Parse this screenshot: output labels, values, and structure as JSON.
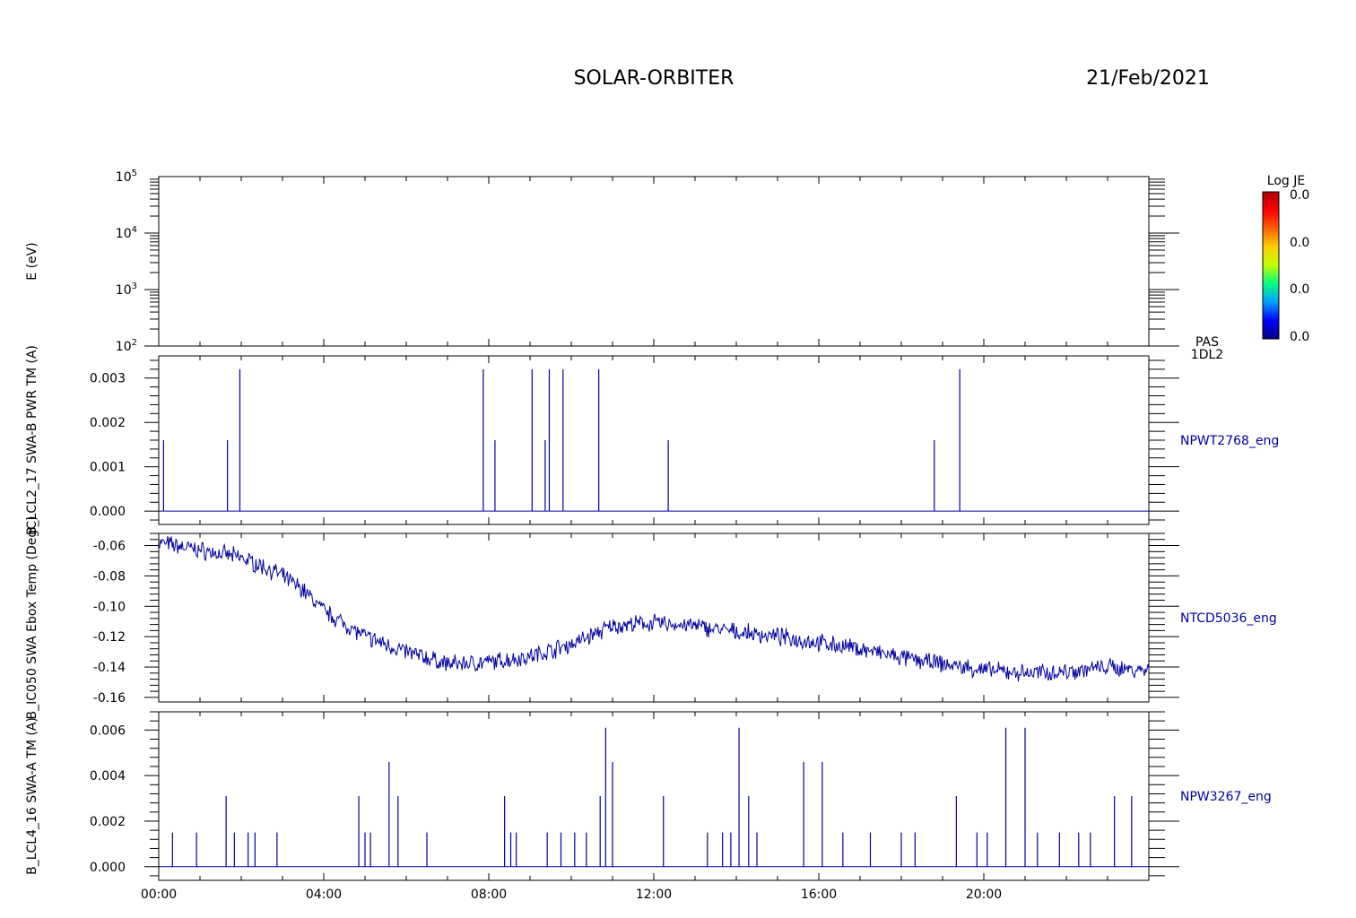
{
  "header": {
    "mission": "SOLAR-ORBITER",
    "date": "21/Feb/2021"
  },
  "colorbar": {
    "title": "Log JE",
    "labels": [
      "0.0",
      "0.0",
      "0.0",
      "0.0"
    ],
    "colors": [
      "#000080",
      "#0000ff",
      "#00a0ff",
      "#00ff80",
      "#c0ff00",
      "#ffd000",
      "#ff6000",
      "#ff0000",
      "#b00000"
    ]
  },
  "x_axis": {
    "tick_labels": [
      "00:00",
      "04:00",
      "08:00",
      "12:00",
      "16:00",
      "20:00"
    ]
  },
  "line_color": "#0000a0",
  "chart_data": [
    {
      "type": "heatmap",
      "ylabel": "E (eV)",
      "side_label": "PAS\n1DL2",
      "log_scale": true,
      "ylim": [
        100,
        100000
      ],
      "y_tick_labels": [
        {
          "base": "10",
          "exp": "2"
        },
        {
          "base": "10",
          "exp": "3"
        },
        {
          "base": "10",
          "exp": "4"
        },
        {
          "base": "10",
          "exp": "5"
        }
      ],
      "values": []
    },
    {
      "type": "line",
      "ylabel": "B_LCL2_17 SWA-B PWR TM (A)",
      "side_label": "NPWT2768_eng",
      "ylim": [
        -0.0003,
        0.0035
      ],
      "y_ticks": [
        0.0,
        0.001,
        0.002,
        0.003
      ],
      "y_tick_labels": [
        "0.000",
        "0.001",
        "0.002",
        "0.003"
      ],
      "baseline": 0.0,
      "spikes": [
        {
          "t": "00:07",
          "value": 0.0016
        },
        {
          "t": "01:40",
          "value": 0.0016
        },
        {
          "t": "01:58",
          "value": 0.0032
        },
        {
          "t": "07:52",
          "value": 0.0032
        },
        {
          "t": "08:09",
          "value": 0.0016
        },
        {
          "t": "09:03",
          "value": 0.0032
        },
        {
          "t": "09:22",
          "value": 0.0016
        },
        {
          "t": "09:28",
          "value": 0.0032
        },
        {
          "t": "09:48",
          "value": 0.0032
        },
        {
          "t": "10:40",
          "value": 0.0032
        },
        {
          "t": "12:21",
          "value": 0.0016
        },
        {
          "t": "18:48",
          "value": 0.0016
        },
        {
          "t": "19:25",
          "value": 0.0032
        }
      ]
    },
    {
      "type": "line",
      "ylabel": "B_IC050 SWA Ebox Temp (DegC)",
      "side_label": "NTCD5036_eng",
      "ylim": [
        -0.163,
        -0.052
      ],
      "y_ticks": [
        -0.16,
        -0.14,
        -0.12,
        -0.1,
        -0.08,
        -0.06
      ],
      "y_tick_labels": [
        "-0.16",
        "-0.14",
        "-0.12",
        "-0.10",
        "-0.08",
        "-0.06"
      ],
      "noise": 0.0045,
      "trend": [
        {
          "h": 0.0,
          "value": -0.058
        },
        {
          "h": 1.0,
          "value": -0.063
        },
        {
          "h": 2.0,
          "value": -0.068
        },
        {
          "h": 2.8,
          "value": -0.077
        },
        {
          "h": 3.5,
          "value": -0.089
        },
        {
          "h": 4.0,
          "value": -0.103
        },
        {
          "h": 5.0,
          "value": -0.12
        },
        {
          "h": 6.0,
          "value": -0.13
        },
        {
          "h": 7.0,
          "value": -0.138
        },
        {
          "h": 8.0,
          "value": -0.137
        },
        {
          "h": 9.0,
          "value": -0.133
        },
        {
          "h": 10.0,
          "value": -0.125
        },
        {
          "h": 11.0,
          "value": -0.113
        },
        {
          "h": 12.0,
          "value": -0.111
        },
        {
          "h": 13.0,
          "value": -0.113
        },
        {
          "h": 14.0,
          "value": -0.117
        },
        {
          "h": 15.0,
          "value": -0.12
        },
        {
          "h": 16.0,
          "value": -0.124
        },
        {
          "h": 17.0,
          "value": -0.128
        },
        {
          "h": 18.0,
          "value": -0.134
        },
        {
          "h": 19.0,
          "value": -0.138
        },
        {
          "h": 20.0,
          "value": -0.142
        },
        {
          "h": 21.0,
          "value": -0.144
        },
        {
          "h": 22.0,
          "value": -0.143
        },
        {
          "h": 23.0,
          "value": -0.14
        },
        {
          "h": 24.0,
          "value": -0.142
        }
      ]
    },
    {
      "type": "line",
      "ylabel": "B_LCL4_16 SWA-A TM (A)",
      "side_label": "NPW3267_eng",
      "ylim": [
        -0.0006,
        0.0068
      ],
      "y_ticks": [
        0.0,
        0.002,
        0.004,
        0.006
      ],
      "y_tick_labels": [
        "0.000",
        "0.002",
        "0.004",
        "0.006"
      ],
      "baseline": 0.0,
      "spikes": [
        {
          "t": "00:20",
          "value": 0.0015
        },
        {
          "t": "00:55",
          "value": 0.0015
        },
        {
          "t": "01:38",
          "value": 0.0031
        },
        {
          "t": "01:50",
          "value": 0.0015
        },
        {
          "t": "02:10",
          "value": 0.0015
        },
        {
          "t": "02:20",
          "value": 0.0015
        },
        {
          "t": "02:52",
          "value": 0.0015
        },
        {
          "t": "04:51",
          "value": 0.0031
        },
        {
          "t": "05:00",
          "value": 0.0015
        },
        {
          "t": "05:08",
          "value": 0.0015
        },
        {
          "t": "05:35",
          "value": 0.0046
        },
        {
          "t": "05:48",
          "value": 0.0031
        },
        {
          "t": "06:30",
          "value": 0.0015
        },
        {
          "t": "08:23",
          "value": 0.0031
        },
        {
          "t": "08:32",
          "value": 0.0015
        },
        {
          "t": "08:40",
          "value": 0.0015
        },
        {
          "t": "09:25",
          "value": 0.0015
        },
        {
          "t": "09:45",
          "value": 0.0015
        },
        {
          "t": "10:05",
          "value": 0.0015
        },
        {
          "t": "10:22",
          "value": 0.0015
        },
        {
          "t": "10:42",
          "value": 0.0031
        },
        {
          "t": "10:50",
          "value": 0.0061
        },
        {
          "t": "11:00",
          "value": 0.0046
        },
        {
          "t": "12:14",
          "value": 0.0031
        },
        {
          "t": "13:18",
          "value": 0.0015
        },
        {
          "t": "13:40",
          "value": 0.0015
        },
        {
          "t": "13:52",
          "value": 0.0015
        },
        {
          "t": "14:04",
          "value": 0.0061
        },
        {
          "t": "14:18",
          "value": 0.0031
        },
        {
          "t": "14:30",
          "value": 0.0015
        },
        {
          "t": "15:38",
          "value": 0.0046
        },
        {
          "t": "16:05",
          "value": 0.0046
        },
        {
          "t": "16:35",
          "value": 0.0015
        },
        {
          "t": "17:15",
          "value": 0.0015
        },
        {
          "t": "18:00",
          "value": 0.0015
        },
        {
          "t": "18:20",
          "value": 0.0015
        },
        {
          "t": "19:20",
          "value": 0.0031
        },
        {
          "t": "19:50",
          "value": 0.0015
        },
        {
          "t": "20:05",
          "value": 0.0015
        },
        {
          "t": "20:32",
          "value": 0.0061
        },
        {
          "t": "21:00",
          "value": 0.0061
        },
        {
          "t": "21:18",
          "value": 0.0015
        },
        {
          "t": "21:50",
          "value": 0.0015
        },
        {
          "t": "22:18",
          "value": 0.0015
        },
        {
          "t": "22:35",
          "value": 0.0015
        },
        {
          "t": "23:10",
          "value": 0.0031
        },
        {
          "t": "23:35",
          "value": 0.0031
        }
      ]
    }
  ]
}
